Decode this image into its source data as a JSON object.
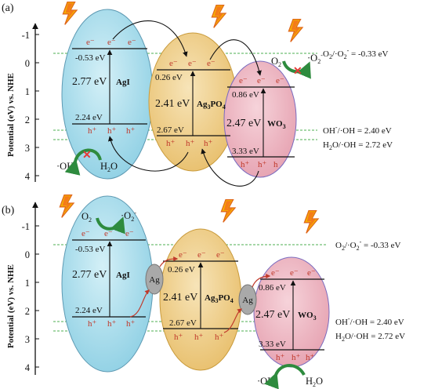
{
  "panels": [
    {
      "label": "(a)",
      "y_axis_label": "Potential (eV) vs. NHE",
      "ticks": [
        "-1",
        "0",
        "1",
        "2",
        "3",
        "4"
      ],
      "semiconductors": [
        {
          "name": "AgI",
          "cb": "-0.53 eV",
          "bandgap": "2.77 eV",
          "vb": "2.24 eV"
        },
        {
          "name": "Ag3PO4",
          "name_main": "Ag",
          "name_sub": "3",
          "name_end": "PO",
          "name_sub2": "4",
          "cb": "0.26 eV",
          "bandgap": "2.41 eV",
          "vb": "2.67 eV"
        },
        {
          "name": "WO3",
          "name_main": "WO",
          "name_sub": "3",
          "cb": "0.86 eV",
          "bandgap": "2.47 eV",
          "vb": "3.33 eV"
        }
      ],
      "redox_labels": [
        "O2/·O2- = -0.33 eV",
        "OH-/·OH = 2.40 eV",
        "H2O/·OH = 2.72 eV"
      ],
      "species": {
        "o2": "O2",
        "o2rad": "·O2-",
        "oh": "·OH",
        "h2o": "H2O"
      }
    },
    {
      "label": "(b)",
      "y_axis_label": "Potential (eV) vs. NHE",
      "ticks": [
        "-1",
        "0",
        "1",
        "2",
        "3",
        "4"
      ],
      "semiconductors": [
        {
          "name": "AgI",
          "cb": "-0.53 eV",
          "bandgap": "2.77 eV",
          "vb": "2.24 eV"
        },
        {
          "name": "Ag3PO4",
          "cb": "0.26 eV",
          "bandgap": "2.41 eV",
          "vb": "2.67 eV"
        },
        {
          "name": "WO3",
          "cb": "0.86 eV",
          "bandgap": "2.47 eV",
          "vb": "3.33 eV"
        }
      ],
      "ag_label": "Ag",
      "redox_labels": [
        "O2/·O2- = -0.33 eV",
        "OH-/·OH = 2.40 eV",
        "H2O/·OH = 2.72 eV"
      ],
      "species": {
        "o2": "O2",
        "o2rad": "·O2-",
        "oh": "·OH",
        "h2o": "H2O"
      }
    }
  ],
  "carriers": {
    "electron": "e-",
    "hole": "h+"
  },
  "colors": {
    "agi": "#a8dcea",
    "ag3po4": "#f1cf8c",
    "wo3": "#efb7c3",
    "ag": "#a9a9a9",
    "dashed_line": "#4caf50",
    "carrier": "#c0392b",
    "recycle_arrow": "#2e8b3e",
    "blocked": "#e53935"
  }
}
